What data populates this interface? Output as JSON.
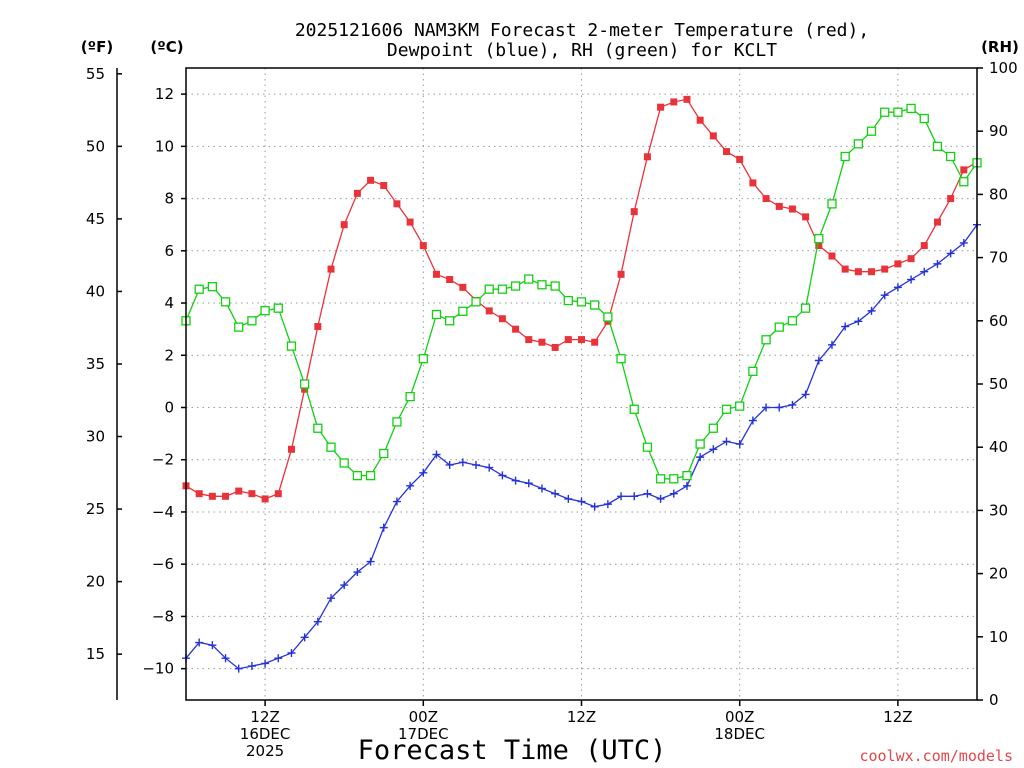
{
  "chart_data": {
    "type": "line",
    "title_lines": [
      "2025121606 NAM3KM Forecast 2-meter Temperature (red),",
      "Dewpoint (blue), RH (green) for KCLT"
    ],
    "xlabel": "Forecast Time (UTC)",
    "watermark": "coolwx.com/models",
    "unit_labels": {
      "fahrenheit": "(ºF)",
      "celsius": "(ºC)",
      "rh": "(RH)"
    },
    "x_hours_range": [
      0,
      60
    ],
    "x_ticks": [
      {
        "hour": 6,
        "lines": [
          "12Z",
          "16DEC",
          "2025"
        ]
      },
      {
        "hour": 18,
        "lines": [
          "00Z",
          "17DEC"
        ]
      },
      {
        "hour": 30,
        "lines": [
          "12Z"
        ]
      },
      {
        "hour": 42,
        "lines": [
          "00Z",
          "18DEC"
        ]
      },
      {
        "hour": 54,
        "lines": [
          "12Z"
        ]
      }
    ],
    "celsius_axis": {
      "range": [
        -11.2,
        13.0
      ],
      "ticks": [
        12,
        10,
        8,
        6,
        4,
        2,
        0,
        -2,
        -4,
        -6,
        -8,
        -10
      ],
      "tick_labels": [
        "12",
        "10",
        "8",
        "6",
        "4",
        "2",
        "0",
        "−2",
        "−4",
        "−6",
        "−8",
        "−10"
      ]
    },
    "fahrenheit_axis": {
      "ticks": [
        55,
        50,
        45,
        40,
        35,
        30,
        25,
        20,
        15
      ],
      "tick_labels": [
        "55",
        "50",
        "45",
        "40",
        "35",
        "30",
        "25",
        "20",
        "15"
      ]
    },
    "rh_axis": {
      "range": [
        0,
        100
      ],
      "ticks": [
        100,
        90,
        80,
        70,
        60,
        50,
        40,
        30,
        20,
        10,
        0
      ],
      "tick_labels": [
        "100",
        "90",
        "80",
        "70",
        "60",
        "50",
        "40",
        "30",
        "20",
        "10",
        "0"
      ]
    },
    "series": [
      {
        "name": "2-meter Temperature (°C)",
        "axis": "celsius",
        "color": "#e8333a",
        "marker": "filled-square",
        "values": [
          -3.0,
          -3.3,
          -3.4,
          -3.4,
          -3.2,
          -3.3,
          -3.5,
          -3.3,
          -1.6,
          0.7,
          3.1,
          5.3,
          7.0,
          8.2,
          8.7,
          8.5,
          7.8,
          7.1,
          6.2,
          5.1,
          4.9,
          4.6,
          4.1,
          3.7,
          3.4,
          3.0,
          2.6,
          2.5,
          2.3,
          2.6,
          2.6,
          2.5,
          3.3,
          5.1,
          7.5,
          9.6,
          11.5,
          11.7,
          11.8,
          11.0,
          10.4,
          9.8,
          9.5,
          8.6,
          8.0,
          7.7,
          7.6,
          7.3,
          6.2,
          5.8,
          5.3,
          5.2,
          5.2,
          5.3,
          5.5,
          5.7,
          6.2,
          7.1,
          8.0,
          9.1,
          9.4
        ]
      },
      {
        "name": "Dewpoint (°C)",
        "axis": "celsius",
        "color": "#2433d6",
        "marker": "plus",
        "values": [
          -9.6,
          -9.0,
          -9.1,
          -9.6,
          -10.0,
          -9.9,
          -9.8,
          -9.6,
          -9.4,
          -8.8,
          -8.2,
          -7.3,
          -6.8,
          -6.3,
          -5.9,
          -4.6,
          -3.6,
          -3.0,
          -2.5,
          -1.8,
          -2.2,
          -2.1,
          -2.2,
          -2.3,
          -2.6,
          -2.8,
          -2.9,
          -3.1,
          -3.3,
          -3.5,
          -3.6,
          -3.8,
          -3.7,
          -3.4,
          -3.4,
          -3.3,
          -3.5,
          -3.3,
          -3.0,
          -1.9,
          -1.6,
          -1.3,
          -1.4,
          -0.5,
          0.0,
          0.0,
          0.1,
          0.5,
          1.8,
          2.4,
          3.1,
          3.3,
          3.7,
          4.3,
          4.6,
          4.9,
          5.2,
          5.5,
          5.9,
          6.3,
          7.0
        ]
      },
      {
        "name": "RH (%)",
        "axis": "rh",
        "color": "#12d012",
        "marker": "open-square",
        "values": [
          60,
          65,
          65.4,
          63,
          59,
          60,
          61.6,
          62,
          56,
          50,
          43,
          40,
          37.5,
          35.5,
          35.5,
          39,
          44,
          48,
          54,
          61,
          60,
          61.5,
          63,
          65,
          65,
          65.5,
          66.6,
          65.7,
          65.5,
          63.2,
          63,
          62.5,
          60.6,
          54,
          46,
          40,
          35,
          35,
          35.5,
          40.5,
          43,
          46,
          46.5,
          52,
          57,
          59,
          60,
          62,
          73,
          78.5,
          86,
          88,
          90,
          93,
          93,
          93.6,
          92,
          87.6,
          86,
          82,
          85
        ]
      }
    ]
  }
}
